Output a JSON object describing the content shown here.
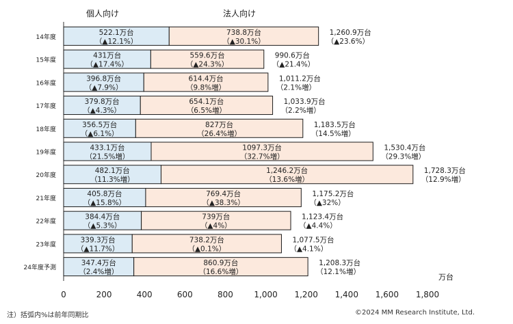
{
  "chart_data": {
    "type": "bar",
    "stacked": true,
    "orientation": "horizontal",
    "unit": "万台",
    "xlim": [
      0,
      1800
    ],
    "xticks": [
      "0",
      "200",
      "400",
      "600",
      "800",
      "1,000",
      "1,200",
      "1,400",
      "1,600",
      "1,800"
    ],
    "xtick_values": [
      0,
      200,
      400,
      600,
      800,
      1000,
      1200,
      1400,
      1600,
      1800
    ],
    "series_headers": [
      "個人向け",
      "法人向け"
    ],
    "categories": [
      "14年度",
      "15年度",
      "16年度",
      "17年度",
      "18年度",
      "19年度",
      "20年度",
      "21年度",
      "22年度",
      "23年度",
      "24年度予測"
    ],
    "series": [
      {
        "name": "個人向け",
        "color": "#dcebf5",
        "values": [
          522.1,
          431,
          396.8,
          379.8,
          356.5,
          433.1,
          482.1,
          405.8,
          384.4,
          339.3,
          347.4
        ],
        "value_labels": [
          "522.1万台",
          "431万台",
          "396.8万台",
          "379.8万台",
          "356.5万台",
          "433.1万台",
          "482.1万台",
          "405.8万台",
          "384.4万台",
          "339.3万台",
          "347.4万台"
        ],
        "change_labels": [
          "（▲12.1%）",
          "（▲17.4%）",
          "（▲7.9%）",
          "（▲4.3%）",
          "（▲6.1%）",
          "（21.5%増）",
          "（11.3%増）",
          "（▲15.8%）",
          "（▲5.3%）",
          "（▲11.7%）",
          "（2.4%増）"
        ]
      },
      {
        "name": "法人向け",
        "color": "#fce9dd",
        "values": [
          738.8,
          559.6,
          614.4,
          654.1,
          827,
          1097.3,
          1246.2,
          769.4,
          739,
          738.2,
          860.9
        ],
        "value_labels": [
          "738.8万台",
          "559.6万台",
          "614.4万台",
          "654.1万台",
          "827万台",
          "1097.3万台",
          "1,246.2万台",
          "769.4万台",
          "739万台",
          "738.2万台",
          "860.9万台"
        ],
        "change_labels": [
          "（▲30.1%）",
          "（▲24.3%）",
          "（9.8%増）",
          "（6.5%増）",
          "（26.4%増）",
          "（32.7%増）",
          "（13.6%増）",
          "（▲38.3%）",
          "（▲4%）",
          "（▲0.1%）",
          "（16.6%増）"
        ]
      }
    ],
    "totals": {
      "values": [
        1260.9,
        990.6,
        1011.2,
        1033.9,
        1183.5,
        1530.4,
        1728.3,
        1175.2,
        1123.4,
        1077.5,
        1208.3
      ],
      "value_labels": [
        "1,260.9万台",
        "990.6万台",
        "1,011.2万台",
        "1,033.9万台",
        "1,183.5万台",
        "1,530.4万台",
        "1,728.3万台",
        "1,175.2万台",
        "1,123.4万台",
        "1,077.5万台",
        "1,208.3万台"
      ],
      "change_labels": [
        "（▲23.6%）",
        "（▲21.4%）",
        "（2.1%増）",
        "（2.2%増）",
        "（14.5%増）",
        "（29.3%増）",
        "（12.9%増）",
        "（▲32%）",
        "（▲4.4%）",
        "（▲4.1%）",
        "（12.1%増）"
      ]
    },
    "axis_unit_label": "万台"
  },
  "footnote": "注）括弧内%は前年同期比",
  "copyright": "©2024 MM Research Institute, Ltd."
}
